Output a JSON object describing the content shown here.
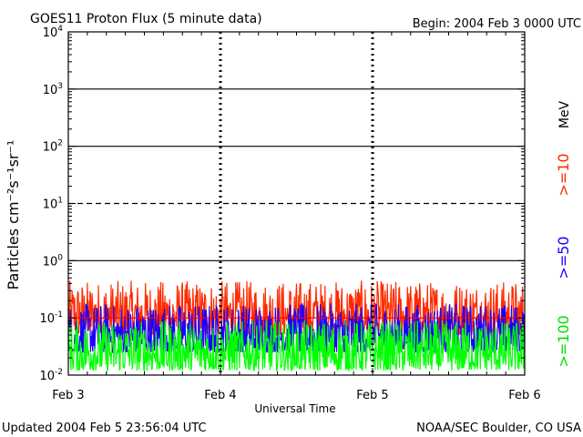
{
  "title": "GOES11 Proton Flux (5 minute data)",
  "begin": "Begin: 2004 Feb 3 0000 UTC",
  "updated": "Updated 2004 Feb  5 23:56:04 UTC",
  "credit": "NOAA/SEC Boulder, CO USA",
  "chart_data": {
    "type": "line",
    "title": "GOES11 Proton Flux (5 minute data)",
    "xlabel": "Universal Time",
    "ylabel": "Particles cm⁻²s⁻¹sr⁻¹",
    "y_scale": "log",
    "ylim": [
      0.01,
      10000
    ],
    "y_ticks": [
      {
        "value": 0.01,
        "base": "10",
        "exp": "-2"
      },
      {
        "value": 0.1,
        "base": "10",
        "exp": "-1"
      },
      {
        "value": 1,
        "base": "10",
        "exp": "0"
      },
      {
        "value": 10,
        "base": "10",
        "exp": "1"
      },
      {
        "value": 100,
        "base": "10",
        "exp": "2"
      },
      {
        "value": 1000,
        "base": "10",
        "exp": "3"
      },
      {
        "value": 10000,
        "base": "10",
        "exp": "4"
      }
    ],
    "x_ticks": [
      "Feb 3",
      "Feb 4",
      "Feb 5",
      "Feb 6"
    ],
    "xlim_days": [
      0,
      3
    ],
    "energy_unit": "MeV",
    "threshold_lines": [
      {
        "value": 10,
        "style": "dashed"
      },
      {
        "value": 0.1,
        "style": "solid",
        "color": "#ff0000"
      }
    ],
    "series": [
      {
        "name": ">=10",
        "color": "#ff2a00",
        "typical_range": [
          0.05,
          0.45
        ]
      },
      {
        "name": ">=50",
        "color": "#1a00ff",
        "typical_range": [
          0.025,
          0.18
        ]
      },
      {
        "name": ">=100",
        "color": "#00ff00",
        "typical_range": [
          0.012,
          0.09
        ]
      }
    ],
    "grid": true,
    "legend": "right-side vertical labels"
  }
}
